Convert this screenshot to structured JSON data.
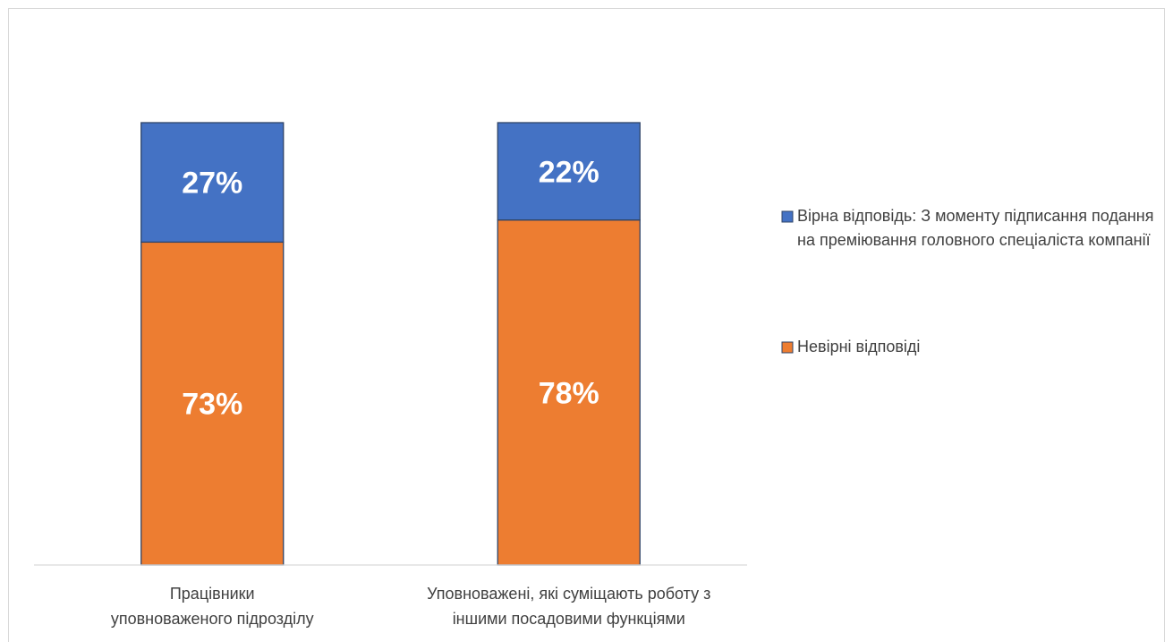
{
  "chart_data": {
    "type": "stacked_bar",
    "categories": [
      [
        "Працівники",
        "уповноваженого підрозділу"
      ],
      [
        "Уповноважені, які суміщають роботу з",
        "іншими посадовими функціями"
      ]
    ],
    "series": [
      {
        "name": "Вірна відповідь: З моменту підписання подання на преміювання головного спеціаліста компанії",
        "color": "#4472c4",
        "values": [
          27,
          22
        ],
        "value_labels": [
          "27%",
          "22%"
        ]
      },
      {
        "name": "Невірні відповіді",
        "color": "#ed7d31",
        "values": [
          73,
          78
        ],
        "value_labels": [
          "73%",
          "78%"
        ]
      }
    ],
    "ylim": [
      0,
      100
    ],
    "legend": "right"
  }
}
